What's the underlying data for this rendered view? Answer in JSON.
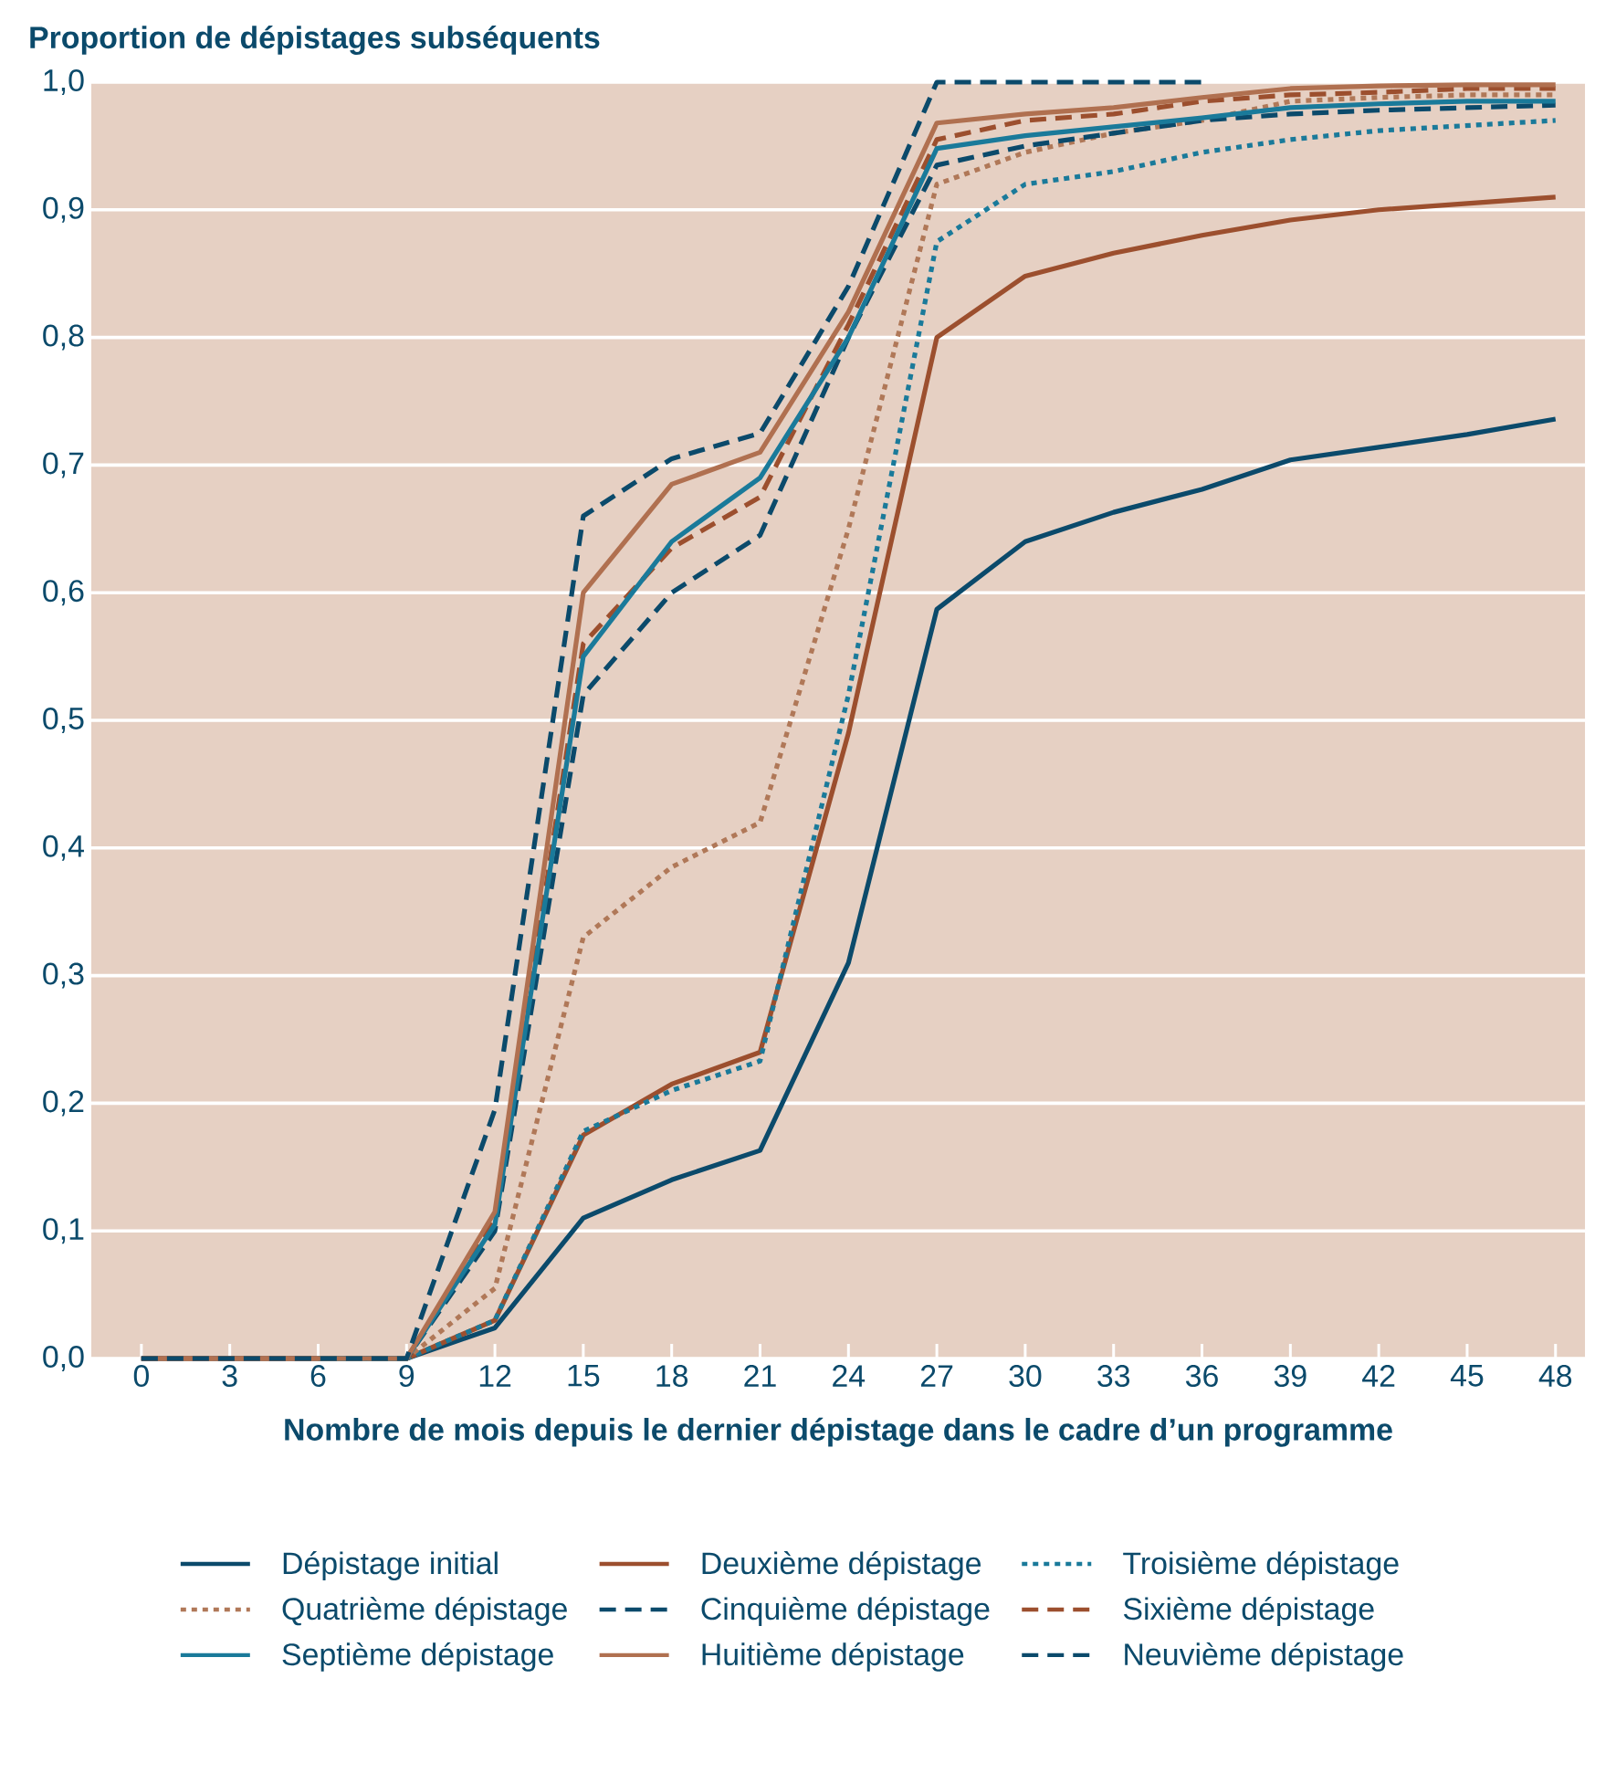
{
  "chart_data": {
    "type": "line",
    "title": "Proportion de dépistages subséquents",
    "xlabel": "Nombre de mois depuis le dernier dépistage dans le cadre d’un programme",
    "x": [
      0,
      3,
      6,
      9,
      12,
      15,
      18,
      21,
      24,
      27,
      30,
      33,
      36,
      39,
      42,
      45,
      48
    ],
    "xlim": [
      -1.7,
      49
    ],
    "xticks": [
      0,
      3,
      6,
      9,
      12,
      15,
      18,
      21,
      24,
      27,
      30,
      33,
      36,
      39,
      42,
      45,
      48
    ],
    "ylim": [
      0,
      1
    ],
    "yticks": [
      {
        "value": 0,
        "label": "0,0"
      },
      {
        "value": 0.1,
        "label": "0,1"
      },
      {
        "value": 0.2,
        "label": "0,2"
      },
      {
        "value": 0.3,
        "label": "0,3"
      },
      {
        "value": 0.4,
        "label": "0,4"
      },
      {
        "value": 0.5,
        "label": "0,5"
      },
      {
        "value": 0.6,
        "label": "0,6"
      },
      {
        "value": 0.7,
        "label": "0,7"
      },
      {
        "value": 0.8,
        "label": "0,8"
      },
      {
        "value": 0.9,
        "label": "0,9"
      },
      {
        "value": 1,
        "label": "1,0"
      }
    ],
    "grid": "y",
    "legend": "bottom",
    "marker": "none",
    "series": [
      {
        "name": "Dépistage initial",
        "color": "#0b4a6b",
        "line_style": "solid",
        "values": [
          0,
          0,
          0,
          0,
          0.024,
          0.11,
          0.14,
          0.163,
          0.31,
          0.587,
          0.64,
          0.663,
          0.681,
          0.704,
          0.714,
          0.724,
          0.736
        ]
      },
      {
        "name": "Deuxième dépistage",
        "color": "#9c4f2e",
        "line_style": "solid",
        "values": [
          0,
          0,
          0,
          0,
          0.03,
          0.175,
          0.215,
          0.24,
          0.49,
          0.8,
          0.848,
          0.866,
          0.88,
          0.892,
          0.9,
          0.905,
          0.91
        ]
      },
      {
        "name": "Troisième dépistage",
        "color": "#1a7a9a",
        "line_style": "dotted",
        "values": [
          null,
          null,
          0,
          0,
          0.03,
          0.178,
          0.21,
          0.233,
          0.52,
          0.875,
          0.92,
          0.93,
          0.945,
          0.955,
          0.962,
          0.966,
          0.97
        ]
      },
      {
        "name": "Quatrième dépistage",
        "color": "#b07858",
        "line_style": "dotted",
        "values": [
          0,
          0,
          0,
          0,
          0.055,
          0.33,
          0.385,
          0.42,
          0.65,
          0.92,
          0.945,
          0.96,
          0.97,
          0.985,
          0.988,
          0.99,
          0.99
        ]
      },
      {
        "name": "Cinquième dépistage",
        "color": "#0b4a6b",
        "line_style": "dashed",
        "values": [
          0,
          0,
          0,
          0,
          0.1,
          0.52,
          0.6,
          0.645,
          0.8,
          0.935,
          0.95,
          0.96,
          0.97,
          0.975,
          0.978,
          0.98,
          0.982
        ]
      },
      {
        "name": "Sixième dépistage",
        "color": "#9c4f2e",
        "line_style": "dashed",
        "values": [
          0,
          0,
          0,
          0,
          0.11,
          0.56,
          0.635,
          0.675,
          0.81,
          0.955,
          0.97,
          0.975,
          0.985,
          0.99,
          0.992,
          0.995,
          0.995
        ]
      },
      {
        "name": "Septième dépistage",
        "color": "#1a7a9a",
        "line_style": "solid",
        "values": [
          null,
          null,
          0,
          0,
          0.105,
          0.55,
          0.64,
          0.69,
          0.8,
          0.948,
          0.958,
          0.965,
          0.972,
          0.98,
          0.983,
          0.985,
          0.985
        ]
      },
      {
        "name": "Huitième dépistage",
        "color": "#b07050",
        "line_style": "solid",
        "values": [
          0,
          0,
          0,
          0,
          0.115,
          0.6,
          0.685,
          0.71,
          0.82,
          0.968,
          0.975,
          0.98,
          0.988,
          0.995,
          0.997,
          0.998,
          0.998
        ]
      },
      {
        "name": "Neuvième dépistage",
        "color": "#0b4a6b",
        "line_style": "dashed",
        "values": [
          0,
          0,
          0,
          0,
          0.195,
          0.66,
          0.705,
          0.725,
          0.84,
          1,
          1,
          1,
          1,
          null,
          null,
          null,
          null
        ]
      }
    ]
  }
}
